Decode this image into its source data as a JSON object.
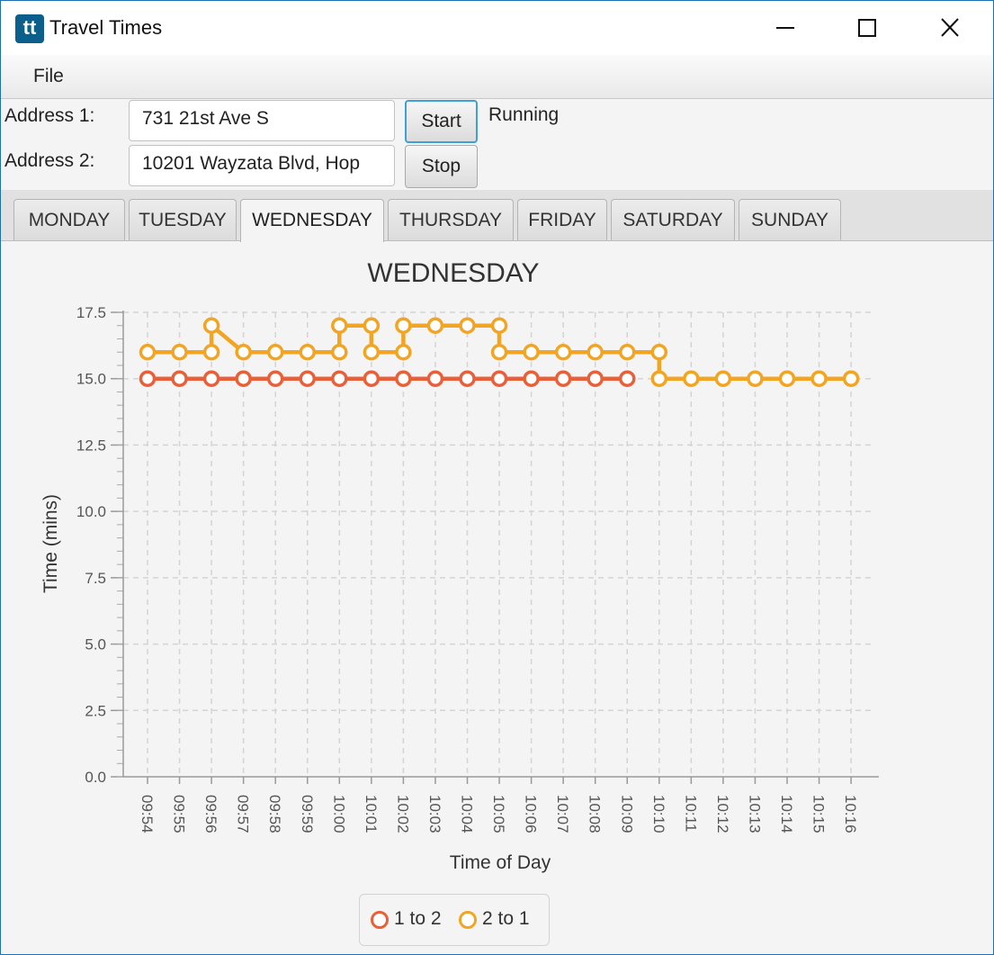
{
  "window": {
    "app_icon_text": "tt",
    "title": "Travel Times"
  },
  "menu": {
    "items": [
      "File"
    ]
  },
  "form": {
    "address1_label": "Address 1:",
    "address1_value": "731 21st Ave S",
    "address2_label": "Address 2:",
    "address2_value": "10201 Wayzata Blvd, Hop",
    "start_label": "Start",
    "stop_label": "Stop",
    "status": "Running"
  },
  "tabs": [
    {
      "label": "MONDAY",
      "selected": false
    },
    {
      "label": "TUESDAY",
      "selected": false
    },
    {
      "label": "WEDNESDAY",
      "selected": true
    },
    {
      "label": "THURSDAY",
      "selected": false
    },
    {
      "label": "FRIDAY",
      "selected": false
    },
    {
      "label": "SATURDAY",
      "selected": false
    },
    {
      "label": "SUNDAY",
      "selected": false
    }
  ],
  "chart_data": {
    "type": "line",
    "title": "WEDNESDAY",
    "xlabel": "Time of Day",
    "ylabel": "Time (mins)",
    "ylim": [
      0,
      17.5
    ],
    "yticks": [
      "0.0",
      "2.5",
      "5.0",
      "7.5",
      "10.0",
      "12.5",
      "15.0",
      "17.5"
    ],
    "grid": true,
    "legend_position": "bottom-center",
    "categories": [
      "09:54",
      "09:55",
      "09:56",
      "09:57",
      "09:58",
      "09:59",
      "10:00",
      "10:01",
      "10:02",
      "10:03",
      "10:04",
      "10:05",
      "10:06",
      "10:07",
      "10:08",
      "10:09",
      "10:10",
      "10:11",
      "10:12",
      "10:13",
      "10:14",
      "10:15",
      "10:16"
    ],
    "series": [
      {
        "name": "1 to 2",
        "color": "#e8603a",
        "points": [
          [
            "09:54",
            15
          ],
          [
            "09:55",
            15
          ],
          [
            "09:56",
            15
          ],
          [
            "09:57",
            15
          ],
          [
            "09:58",
            15
          ],
          [
            "09:59",
            15
          ],
          [
            "10:00",
            15
          ],
          [
            "10:01",
            15
          ],
          [
            "10:02",
            15
          ],
          [
            "10:03",
            15
          ],
          [
            "10:04",
            15
          ],
          [
            "10:05",
            15
          ],
          [
            "10:06",
            15
          ],
          [
            "10:07",
            15
          ],
          [
            "10:08",
            15
          ],
          [
            "10:09",
            15
          ]
        ]
      },
      {
        "name": "2 to 1",
        "color": "#f2a423",
        "points": [
          [
            "09:54",
            16
          ],
          [
            "09:55",
            16
          ],
          [
            "09:56",
            16
          ],
          [
            "09:56",
            17
          ],
          [
            "09:57",
            16
          ],
          [
            "09:58",
            16
          ],
          [
            "09:59",
            16
          ],
          [
            "10:00",
            16
          ],
          [
            "10:00",
            17
          ],
          [
            "10:01",
            17
          ],
          [
            "10:01",
            16
          ],
          [
            "10:02",
            16
          ],
          [
            "10:02",
            17
          ],
          [
            "10:03",
            17
          ],
          [
            "10:04",
            17
          ],
          [
            "10:05",
            17
          ],
          [
            "10:05",
            16
          ],
          [
            "10:06",
            16
          ],
          [
            "10:07",
            16
          ],
          [
            "10:08",
            16
          ],
          [
            "10:09",
            16
          ],
          [
            "10:10",
            16
          ],
          [
            "10:10",
            15
          ],
          [
            "10:11",
            15
          ],
          [
            "10:12",
            15
          ],
          [
            "10:13",
            15
          ],
          [
            "10:14",
            15
          ],
          [
            "10:15",
            15
          ],
          [
            "10:16",
            15
          ]
        ]
      }
    ]
  }
}
